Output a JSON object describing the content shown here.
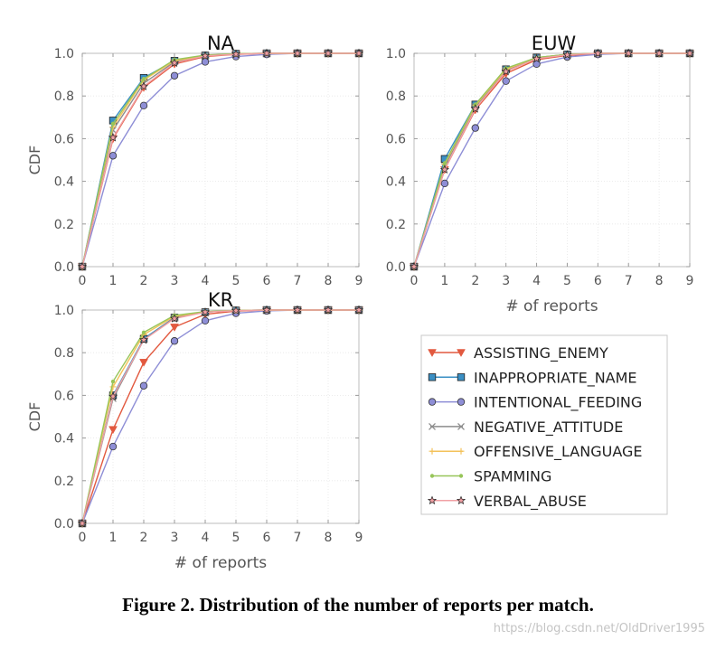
{
  "chart_data": [
    {
      "type": "line",
      "title": "NA",
      "xlabel": "",
      "ylabel": "CDF",
      "xlim": [
        0,
        9
      ],
      "ylim": [
        0,
        1
      ],
      "xticks": [
        "0",
        "1",
        "2",
        "3",
        "4",
        "5",
        "6",
        "7",
        "8",
        "9"
      ],
      "yticks": [
        "0.0",
        "0.2",
        "0.4",
        "0.6",
        "0.8",
        "1.0"
      ],
      "x": [
        0,
        1,
        2,
        3,
        4,
        5,
        6,
        7,
        8,
        9
      ],
      "series": [
        {
          "name": "ASSISTING_ENEMY",
          "values": [
            0,
            0.6,
            0.84,
            0.95,
            0.985,
            0.995,
            1,
            1,
            1,
            1
          ]
        },
        {
          "name": "INAPPROPRIATE_NAME",
          "values": [
            0,
            0.685,
            0.885,
            0.965,
            0.99,
            0.998,
            1,
            1,
            1,
            1
          ]
        },
        {
          "name": "INTENTIONAL_FEEDING",
          "values": [
            0,
            0.52,
            0.755,
            0.895,
            0.96,
            0.985,
            0.995,
            1,
            1,
            1
          ]
        },
        {
          "name": "NEGATIVE_ATTITUDE",
          "values": [
            0,
            0.64,
            0.86,
            0.96,
            0.99,
            0.997,
            1,
            1,
            1,
            1
          ]
        },
        {
          "name": "OFFENSIVE_LANGUAGE",
          "values": [
            0,
            0.655,
            0.875,
            0.965,
            0.99,
            0.998,
            1,
            1,
            1,
            1
          ]
        },
        {
          "name": "SPAMMING",
          "values": [
            0,
            0.67,
            0.88,
            0.97,
            0.992,
            0.998,
            1,
            1,
            1,
            1
          ]
        },
        {
          "name": "VERBAL_ABUSE",
          "values": [
            0,
            0.605,
            0.845,
            0.955,
            0.988,
            0.996,
            1,
            1,
            1,
            1
          ]
        }
      ]
    },
    {
      "type": "line",
      "title": "EUW",
      "xlabel": "# of reports",
      "ylabel": "",
      "xlim": [
        0,
        9
      ],
      "ylim": [
        0,
        1
      ],
      "xticks": [
        "0",
        "1",
        "2",
        "3",
        "4",
        "5",
        "6",
        "7",
        "8",
        "9"
      ],
      "yticks": [
        "0.0",
        "0.2",
        "0.4",
        "0.6",
        "0.8",
        "1.0"
      ],
      "x": [
        0,
        1,
        2,
        3,
        4,
        5,
        6,
        7,
        8,
        9
      ],
      "series": [
        {
          "name": "ASSISTING_ENEMY",
          "values": [
            0,
            0.455,
            0.735,
            0.905,
            0.97,
            0.99,
            0.997,
            1,
            1,
            1
          ]
        },
        {
          "name": "INAPPROPRIATE_NAME",
          "values": [
            0,
            0.505,
            0.76,
            0.925,
            0.98,
            0.995,
            1,
            1,
            1,
            1
          ]
        },
        {
          "name": "INTENTIONAL_FEEDING",
          "values": [
            0,
            0.39,
            0.65,
            0.87,
            0.95,
            0.983,
            0.995,
            1,
            1,
            1
          ]
        },
        {
          "name": "NEGATIVE_ATTITUDE",
          "values": [
            0,
            0.47,
            0.75,
            0.92,
            0.978,
            0.994,
            1,
            1,
            1,
            1
          ]
        },
        {
          "name": "OFFENSIVE_LANGUAGE",
          "values": [
            0,
            0.48,
            0.755,
            0.925,
            0.98,
            0.995,
            1,
            1,
            1,
            1
          ]
        },
        {
          "name": "SPAMMING",
          "values": [
            0,
            0.485,
            0.76,
            0.93,
            0.98,
            0.995,
            1,
            1,
            1,
            1
          ]
        },
        {
          "name": "VERBAL_ABUSE",
          "values": [
            0,
            0.455,
            0.74,
            0.915,
            0.975,
            0.993,
            1,
            1,
            1,
            1
          ]
        }
      ]
    },
    {
      "type": "line",
      "title": "KR",
      "xlabel": "# of reports",
      "ylabel": "CDF",
      "xlim": [
        0,
        9
      ],
      "ylim": [
        0,
        1
      ],
      "xticks": [
        "0",
        "1",
        "2",
        "3",
        "4",
        "5",
        "6",
        "7",
        "8",
        "9"
      ],
      "yticks": [
        "0.0",
        "0.2",
        "0.4",
        "0.6",
        "0.8",
        "1.0"
      ],
      "x": [
        0,
        1,
        2,
        3,
        4,
        5,
        6,
        7,
        8,
        9
      ],
      "series": [
        {
          "name": "ASSISTING_ENEMY",
          "values": [
            0,
            0.44,
            0.755,
            0.92,
            0.98,
            0.995,
            1,
            1,
            1,
            1
          ]
        },
        {
          "name": "INAPPROPRIATE_NAME",
          "values": [
            0,
            0.6,
            0.865,
            0.965,
            0.99,
            0.998,
            1,
            1,
            1,
            1
          ]
        },
        {
          "name": "INTENTIONAL_FEEDING",
          "values": [
            0,
            0.36,
            0.645,
            0.855,
            0.95,
            0.985,
            0.996,
            1,
            1,
            1
          ]
        },
        {
          "name": "NEGATIVE_ATTITUDE",
          "values": [
            0,
            0.585,
            0.86,
            0.965,
            0.99,
            0.998,
            1,
            1,
            1,
            1
          ]
        },
        {
          "name": "OFFENSIVE_LANGUAGE",
          "values": [
            0,
            0.64,
            0.885,
            0.97,
            0.992,
            0.998,
            1,
            1,
            1,
            1
          ]
        },
        {
          "name": "SPAMMING",
          "values": [
            0,
            0.665,
            0.895,
            0.975,
            0.993,
            0.998,
            1,
            1,
            1,
            1
          ]
        },
        {
          "name": "VERBAL_ABUSE",
          "values": [
            0,
            0.595,
            0.86,
            0.96,
            0.99,
            0.997,
            1,
            1,
            1,
            1
          ]
        }
      ]
    }
  ],
  "legend": {
    "placement": "lower-right",
    "entries": [
      {
        "name": "ASSISTING_ENEMY",
        "color": "#e2593f",
        "marker": "triangle-down"
      },
      {
        "name": "INAPPROPRIATE_NAME",
        "color": "#3a8fc4",
        "marker": "square"
      },
      {
        "name": "INTENTIONAL_FEEDING",
        "color": "#8e8ed6",
        "marker": "circle"
      },
      {
        "name": "NEGATIVE_ATTITUDE",
        "color": "#8c8c8c",
        "marker": "x"
      },
      {
        "name": "OFFENSIVE_LANGUAGE",
        "color": "#f3c25a",
        "marker": "plus"
      },
      {
        "name": "SPAMMING",
        "color": "#97c559",
        "marker": "dot"
      },
      {
        "name": "VERBAL_ABUSE",
        "color": "#f1a0a4",
        "marker": "star"
      }
    ]
  },
  "caption": "Figure 2. Distribution of the number of reports per match.",
  "watermark": "https://blog.csdn.net/OldDriver1995"
}
